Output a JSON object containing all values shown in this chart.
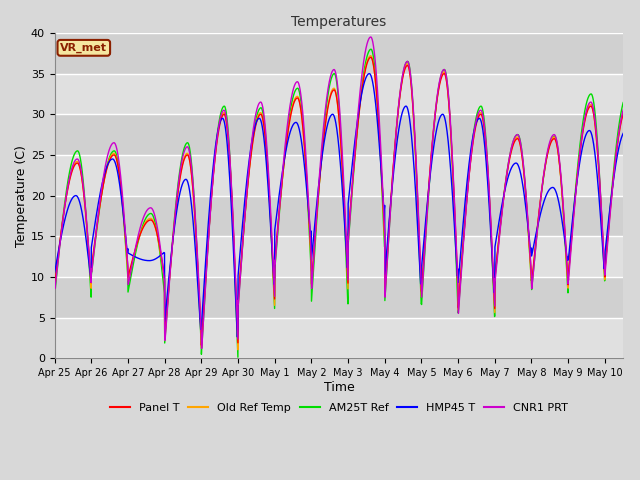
{
  "title": "Temperatures",
  "xlabel": "Time",
  "ylabel": "Temperature (C)",
  "ylim": [
    0,
    40
  ],
  "fig_bg_color": "#d8d8d8",
  "plot_bg_color": "#d8d8d8",
  "grid_color": "white",
  "annotation_text": "VR_met",
  "annotation_bg": "#f5e6a0",
  "annotation_border": "#8B2000",
  "legend_entries": [
    "Panel T",
    "Old Ref Temp",
    "AM25T Ref",
    "HMP45 T",
    "CNR1 PRT"
  ],
  "line_colors": [
    "#ff0000",
    "#ffa500",
    "#00dd00",
    "#0000ff",
    "#cc00cc"
  ],
  "x_tick_labels": [
    "Apr 25",
    "Apr 26",
    "Apr 27",
    "Apr 28",
    "Apr 29",
    "Apr 30",
    "May 1",
    "May 2",
    "May 3",
    "May 4",
    "May 5",
    "May 6",
    "May 7",
    "May 8",
    "May 9",
    "May 10"
  ],
  "day_maxes_base": [
    24,
    25,
    17,
    25,
    30,
    30,
    32,
    33,
    37,
    36,
    35,
    30,
    27,
    27,
    31,
    31
  ],
  "day_mins_base": [
    9,
    11,
    10,
    2.5,
    1.5,
    7,
    12,
    9,
    15,
    8,
    8,
    6,
    10,
    9,
    10,
    11
  ]
}
